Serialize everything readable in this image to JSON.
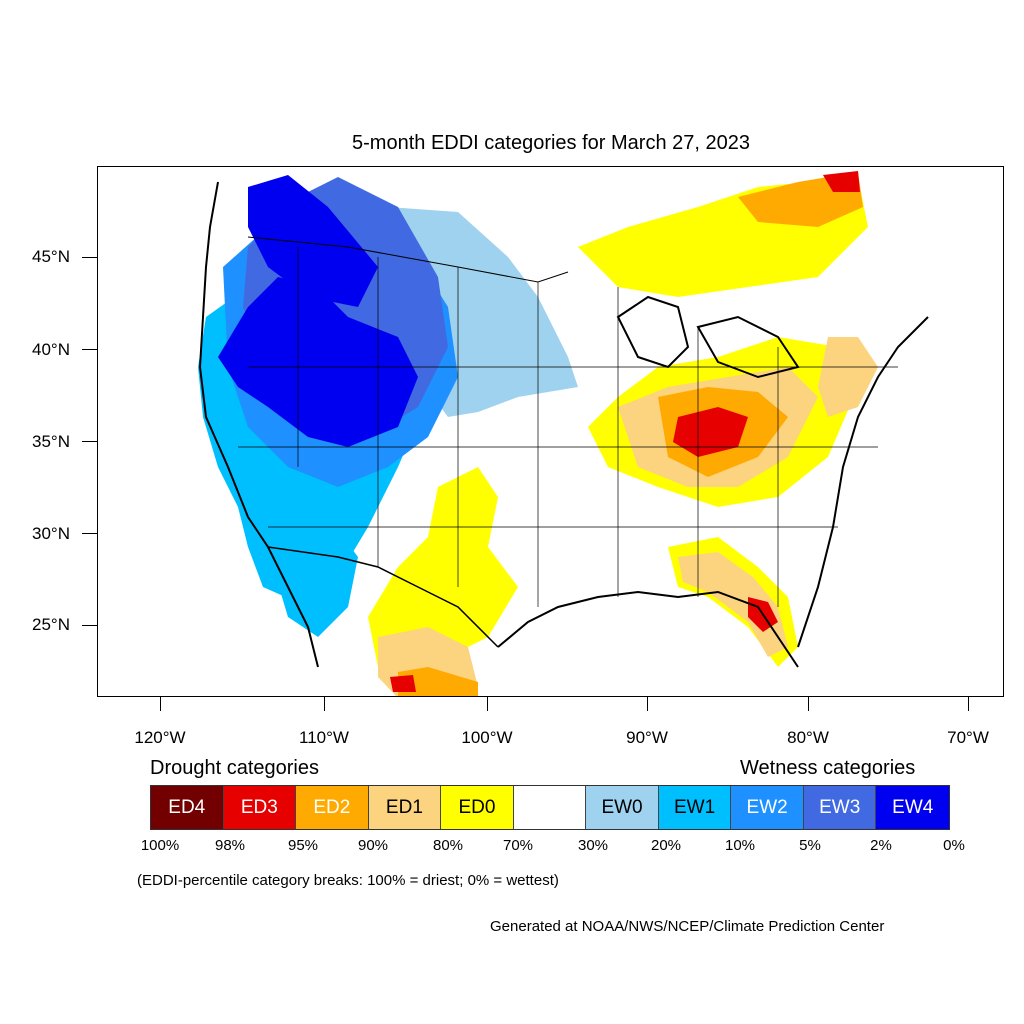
{
  "title": "5-month EDDI categories for March 27, 2023",
  "axes": {
    "y_labels": [
      "45°N",
      "40°N",
      "35°N",
      "30°N",
      "25°N"
    ],
    "x_labels": [
      "120°W",
      "110°W",
      "100°W",
      "90°W",
      "80°W",
      "70°W"
    ]
  },
  "legend": {
    "drought_heading": "Drought categories",
    "wetness_heading": "Wetness categories",
    "categories": [
      {
        "label": "ED4",
        "color": "#730000",
        "text_color": "#ffffff"
      },
      {
        "label": "ED3",
        "color": "#e60000",
        "text_color": "#ffffff"
      },
      {
        "label": "ED2",
        "color": "#ffaa00",
        "text_color": "#ffffff"
      },
      {
        "label": "ED1",
        "color": "#fcd37f",
        "text_color": "#000000"
      },
      {
        "label": "ED0",
        "color": "#ffff00",
        "text_color": "#000000"
      },
      {
        "label": "",
        "color": "#ffffff",
        "text_color": "#000000"
      },
      {
        "label": "EW0",
        "color": "#9fd2ef",
        "text_color": "#000000"
      },
      {
        "label": "EW1",
        "color": "#00bfff",
        "text_color": "#000000"
      },
      {
        "label": "EW2",
        "color": "#1e90ff",
        "text_color": "#ffffff"
      },
      {
        "label": "EW3",
        "color": "#4169e1",
        "text_color": "#ffffff"
      },
      {
        "label": "EW4",
        "color": "#0000f0",
        "text_color": "#ffffff"
      }
    ],
    "percentiles": [
      "100%",
      "98%",
      "95%",
      "90%",
      "80%",
      "70%",
      "30%",
      "20%",
      "10%",
      "5%",
      "2%",
      "0%"
    ]
  },
  "note": "(EDDI-percentile category breaks: 100% = driest; 0% = wettest)",
  "credit": "Generated at NOAA/NWS/NCEP/Climate Prediction Center"
}
